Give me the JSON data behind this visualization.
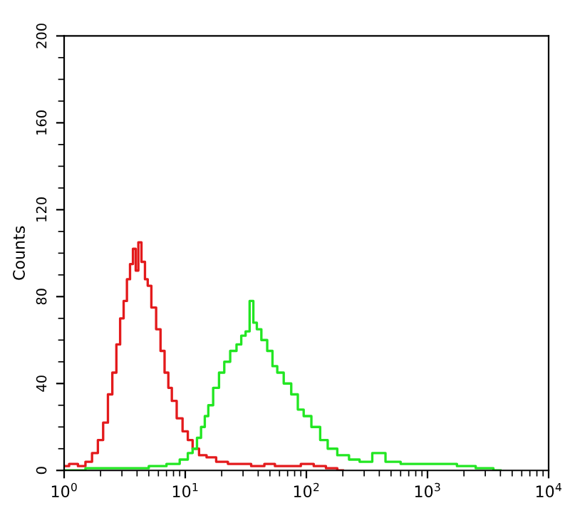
{
  "chart_data": {
    "type": "step",
    "ylabel": "Counts",
    "log": "x",
    "grid": false,
    "xlim": [
      1,
      10000
    ],
    "ylim": [
      0,
      200
    ],
    "xticks": [
      {
        "value": 1,
        "label": "10$^{0}$"
      },
      {
        "value": 10,
        "label": "10$^{1}$"
      },
      {
        "value": 100,
        "label": "10$^{2}$"
      },
      {
        "value": 1000,
        "label": "10$^{3}$"
      },
      {
        "value": 10000,
        "label": "10$^{4}$"
      }
    ],
    "yticks": [
      0,
      40,
      80,
      120,
      160,
      200
    ],
    "series": [
      {
        "color": "#e31a1c",
        "x": [
          1.0,
          1.2,
          1.4,
          1.6,
          1.8,
          2.0,
          2.2,
          2.4,
          2.6,
          2.8,
          3.0,
          3.2,
          3.4,
          3.6,
          3.8,
          4.0,
          4.2,
          4.5,
          4.8,
          5.0,
          5.5,
          6.0,
          6.5,
          7.0,
          7.5,
          8.0,
          9.0,
          10,
          11,
          12,
          14,
          16,
          20,
          25,
          30,
          40,
          50,
          60,
          80,
          100,
          130,
          160,
          200
        ],
        "values": [
          2,
          3,
          2,
          4,
          8,
          14,
          22,
          35,
          45,
          58,
          70,
          78,
          88,
          95,
          102,
          92,
          105,
          96,
          88,
          85,
          75,
          65,
          55,
          45,
          38,
          32,
          24,
          18,
          14,
          10,
          7,
          6,
          4,
          3,
          3,
          2,
          3,
          2,
          2,
          3,
          2,
          1,
          0
        ]
      },
      {
        "color": "#22e622",
        "x": [
          1,
          2,
          4,
          6,
          8,
          10,
          11,
          12,
          13,
          14,
          15,
          16,
          18,
          20,
          22,
          25,
          28,
          30,
          33,
          35,
          38,
          40,
          45,
          50,
          55,
          60,
          70,
          80,
          90,
          100,
          120,
          140,
          160,
          200,
          250,
          300,
          400,
          500,
          700,
          1000,
          1500,
          2000,
          3000,
          4000
        ],
        "values": [
          0,
          1,
          1,
          2,
          3,
          5,
          8,
          10,
          15,
          20,
          25,
          30,
          38,
          45,
          50,
          55,
          58,
          62,
          64,
          78,
          68,
          65,
          60,
          55,
          48,
          45,
          40,
          35,
          28,
          25,
          20,
          14,
          10,
          7,
          5,
          4,
          8,
          4,
          3,
          3,
          3,
          2,
          1,
          0
        ]
      }
    ]
  }
}
